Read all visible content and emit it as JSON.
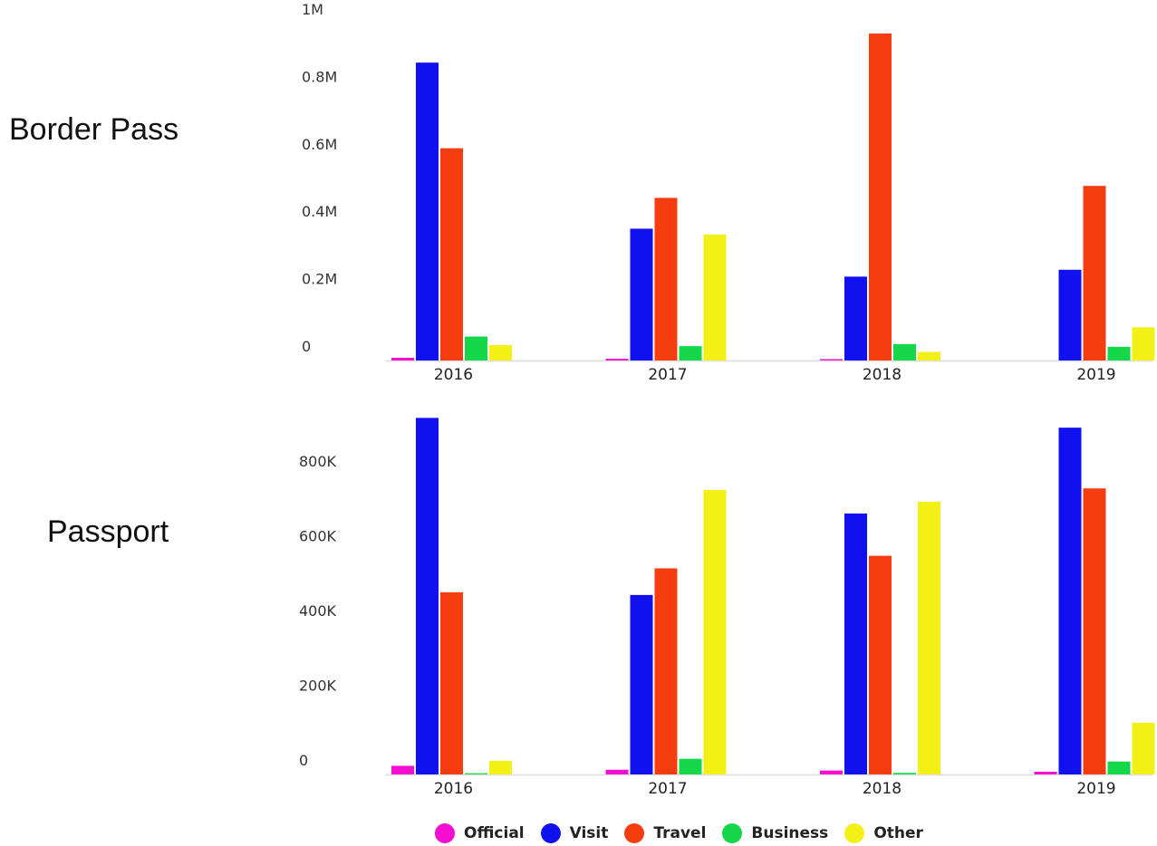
{
  "chart_data": [
    {
      "type": "bar",
      "title": "Border Pass",
      "categories": [
        "2016",
        "2017",
        "2018",
        "2019"
      ],
      "y_ticks": [
        "0",
        "0.2M",
        "0.4M",
        "0.6M",
        "0.8M",
        "1M"
      ],
      "ylim": [
        0,
        1000000
      ],
      "grid": false,
      "series": [
        {
          "name": "Official",
          "values": [
            8000,
            5000,
            4000,
            0
          ]
        },
        {
          "name": "Visit",
          "values": [
            870000,
            385000,
            245000,
            265000
          ]
        },
        {
          "name": "Travel",
          "values": [
            620000,
            475000,
            955000,
            510000
          ]
        },
        {
          "name": "Business",
          "values": [
            70000,
            42000,
            48000,
            40000
          ]
        },
        {
          "name": "Other",
          "values": [
            45000,
            368000,
            25000,
            97000
          ]
        }
      ]
    },
    {
      "type": "bar",
      "title": "Passport",
      "categories": [
        "2016",
        "2017",
        "2018",
        "2019"
      ],
      "y_ticks": [
        "0",
        "200K",
        "400K",
        "600K",
        "800K"
      ],
      "ylim": [
        0,
        890000
      ],
      "grid": false,
      "series": [
        {
          "name": "Official",
          "values": [
            22000,
            12000,
            10000,
            7000
          ]
        },
        {
          "name": "Visit",
          "values": [
            910000,
            458000,
            666000,
            885000
          ]
        },
        {
          "name": "Travel",
          "values": [
            465000,
            526000,
            558000,
            730000
          ]
        },
        {
          "name": "Business",
          "values": [
            3000,
            40000,
            4000,
            33000
          ]
        },
        {
          "name": "Other",
          "values": [
            35000,
            726000,
            696000,
            132000
          ]
        }
      ]
    }
  ],
  "legend": {
    "placement": "bottom-center",
    "items": [
      {
        "label": "Official",
        "color": "#f50fd0"
      },
      {
        "label": "Visit",
        "color": "#1111f0"
      },
      {
        "label": "Travel",
        "color": "#f53d10"
      },
      {
        "label": "Business",
        "color": "#14d84a"
      },
      {
        "label": "Other",
        "color": "#f2f014"
      }
    ]
  }
}
